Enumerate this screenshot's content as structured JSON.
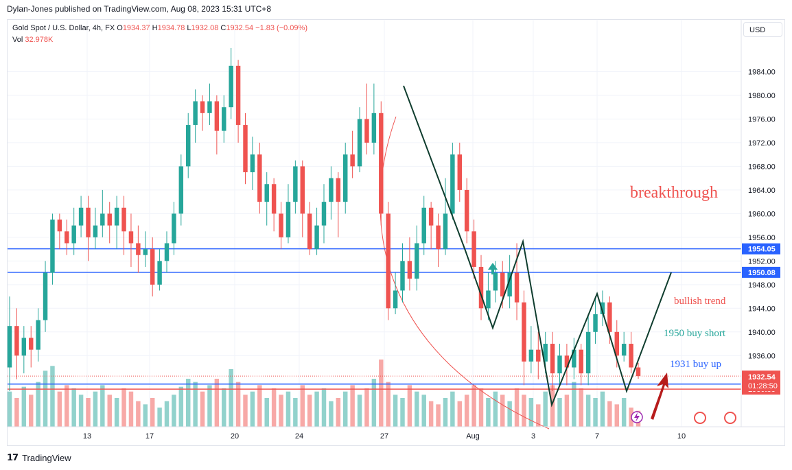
{
  "header": {
    "publisher": "Dylan-Jones published on TradingView.com, Aug 08, 2023 15:31 UTC+8"
  },
  "legend": {
    "symbol": "Gold Spot / U.S. Dollar, 4h, FX",
    "open_label": "O",
    "open": "1934.37",
    "high_label": "H",
    "high": "1934.78",
    "low_label": "L",
    "low": "1932.08",
    "close_label": "C",
    "close": "1932.54",
    "change": "−1.83 (−0.09%)",
    "vol_label": "Vol",
    "vol": "32.978K"
  },
  "currency_button": "USD",
  "footer": {
    "brand": "TradingView"
  },
  "colors": {
    "up": "#26a69a",
    "down": "#ef5350",
    "level": "#2962ff",
    "pattern": "#0f3d2e"
  },
  "chart_data": {
    "type": "candlestick",
    "symbol": "XAUUSD",
    "timeframe": "4h",
    "y_range": [
      1930,
      1988
    ],
    "y_ticks": [
      "1984.00",
      "1980.00",
      "1976.00",
      "1972.00",
      "1968.00",
      "1964.00",
      "1960.00",
      "1956.00",
      "1952.00",
      "1948.00",
      "1944.00",
      "1940.00",
      "1936.00"
    ],
    "x_ticks": [
      "13",
      "17",
      "20",
      "24",
      "27",
      "Aug",
      "3",
      "7",
      "10"
    ],
    "candles": [
      {
        "o": 1934,
        "c": 1941,
        "h": 1946,
        "l": 1930
      },
      {
        "o": 1941,
        "c": 1936,
        "h": 1944,
        "l": 1932
      },
      {
        "o": 1936,
        "c": 1939,
        "h": 1941,
        "l": 1933
      },
      {
        "o": 1939,
        "c": 1937,
        "h": 1941,
        "l": 1934
      },
      {
        "o": 1937,
        "c": 1942,
        "h": 1944,
        "l": 1935
      },
      {
        "o": 1942,
        "c": 1950,
        "h": 1952,
        "l": 1940
      },
      {
        "o": 1950,
        "c": 1959,
        "h": 1960,
        "l": 1948
      },
      {
        "o": 1959,
        "c": 1957,
        "h": 1960,
        "l": 1954
      },
      {
        "o": 1957,
        "c": 1955,
        "h": 1959,
        "l": 1953
      },
      {
        "o": 1955,
        "c": 1958,
        "h": 1961,
        "l": 1953
      },
      {
        "o": 1958,
        "c": 1961,
        "h": 1963,
        "l": 1956
      },
      {
        "o": 1961,
        "c": 1956,
        "h": 1963,
        "l": 1952
      },
      {
        "o": 1956,
        "c": 1958,
        "h": 1961,
        "l": 1954
      },
      {
        "o": 1958,
        "c": 1960,
        "h": 1964,
        "l": 1956
      },
      {
        "o": 1960,
        "c": 1958,
        "h": 1962,
        "l": 1955
      },
      {
        "o": 1958,
        "c": 1961,
        "h": 1963,
        "l": 1954
      },
      {
        "o": 1961,
        "c": 1957,
        "h": 1963,
        "l": 1953
      },
      {
        "o": 1957,
        "c": 1955,
        "h": 1960,
        "l": 1951
      },
      {
        "o": 1955,
        "c": 1953,
        "h": 1958,
        "l": 1950
      },
      {
        "o": 1953,
        "c": 1954,
        "h": 1957,
        "l": 1951
      },
      {
        "o": 1954,
        "c": 1948,
        "h": 1956,
        "l": 1946
      },
      {
        "o": 1948,
        "c": 1952,
        "h": 1954,
        "l": 1947
      },
      {
        "o": 1952,
        "c": 1955,
        "h": 1957,
        "l": 1950
      },
      {
        "o": 1955,
        "c": 1960,
        "h": 1962,
        "l": 1953
      },
      {
        "o": 1960,
        "c": 1968,
        "h": 1970,
        "l": 1958
      },
      {
        "o": 1968,
        "c": 1975,
        "h": 1977,
        "l": 1966
      },
      {
        "o": 1975,
        "c": 1979,
        "h": 1981,
        "l": 1972
      },
      {
        "o": 1979,
        "c": 1977,
        "h": 1980,
        "l": 1974
      },
      {
        "o": 1977,
        "c": 1979,
        "h": 1982,
        "l": 1975
      },
      {
        "o": 1979,
        "c": 1974,
        "h": 1980,
        "l": 1970
      },
      {
        "o": 1974,
        "c": 1978,
        "h": 1980,
        "l": 1972
      },
      {
        "o": 1978,
        "c": 1985,
        "h": 1988,
        "l": 1976
      },
      {
        "o": 1985,
        "c": 1975,
        "h": 1986,
        "l": 1972
      },
      {
        "o": 1975,
        "c": 1967,
        "h": 1977,
        "l": 1965
      },
      {
        "o": 1967,
        "c": 1970,
        "h": 1973,
        "l": 1964
      },
      {
        "o": 1970,
        "c": 1962,
        "h": 1972,
        "l": 1960
      },
      {
        "o": 1962,
        "c": 1965,
        "h": 1967,
        "l": 1958
      },
      {
        "o": 1965,
        "c": 1960,
        "h": 1966,
        "l": 1957
      },
      {
        "o": 1960,
        "c": 1956,
        "h": 1962,
        "l": 1954
      },
      {
        "o": 1956,
        "c": 1962,
        "h": 1965,
        "l": 1955
      },
      {
        "o": 1962,
        "c": 1968,
        "h": 1969,
        "l": 1960
      },
      {
        "o": 1968,
        "c": 1960,
        "h": 1969,
        "l": 1956
      },
      {
        "o": 1960,
        "c": 1954,
        "h": 1962,
        "l": 1953
      },
      {
        "o": 1954,
        "c": 1958,
        "h": 1961,
        "l": 1953
      },
      {
        "o": 1958,
        "c": 1962,
        "h": 1965,
        "l": 1955
      },
      {
        "o": 1962,
        "c": 1966,
        "h": 1968,
        "l": 1959
      },
      {
        "o": 1966,
        "c": 1962,
        "h": 1967,
        "l": 1956
      },
      {
        "o": 1962,
        "c": 1970,
        "h": 1972,
        "l": 1960
      },
      {
        "o": 1970,
        "c": 1968,
        "h": 1974,
        "l": 1966
      },
      {
        "o": 1968,
        "c": 1976,
        "h": 1978,
        "l": 1967
      },
      {
        "o": 1976,
        "c": 1972,
        "h": 1982,
        "l": 1970
      },
      {
        "o": 1972,
        "c": 1977,
        "h": 1982,
        "l": 1970
      },
      {
        "o": 1977,
        "c": 1960,
        "h": 1979,
        "l": 1958
      },
      {
        "o": 1960,
        "c": 1944,
        "h": 1962,
        "l": 1942
      },
      {
        "o": 1944,
        "c": 1947,
        "h": 1950,
        "l": 1943
      },
      {
        "o": 1947,
        "c": 1952,
        "h": 1955,
        "l": 1945
      },
      {
        "o": 1952,
        "c": 1949,
        "h": 1956,
        "l": 1947
      },
      {
        "o": 1949,
        "c": 1955,
        "h": 1958,
        "l": 1947
      },
      {
        "o": 1955,
        "c": 1961,
        "h": 1963,
        "l": 1953
      },
      {
        "o": 1961,
        "c": 1958,
        "h": 1962,
        "l": 1954
      },
      {
        "o": 1958,
        "c": 1954,
        "h": 1960,
        "l": 1951
      },
      {
        "o": 1954,
        "c": 1960,
        "h": 1966,
        "l": 1953
      },
      {
        "o": 1960,
        "c": 1970,
        "h": 1972,
        "l": 1959
      },
      {
        "o": 1970,
        "c": 1964,
        "h": 1972,
        "l": 1962
      },
      {
        "o": 1964,
        "c": 1957,
        "h": 1966,
        "l": 1955
      },
      {
        "o": 1957,
        "c": 1951,
        "h": 1959,
        "l": 1949
      },
      {
        "o": 1951,
        "c": 1944,
        "h": 1953,
        "l": 1942
      },
      {
        "o": 1944,
        "c": 1947,
        "h": 1950,
        "l": 1942
      },
      {
        "o": 1947,
        "c": 1950,
        "h": 1952,
        "l": 1945
      },
      {
        "o": 1950,
        "c": 1946,
        "h": 1952,
        "l": 1944
      },
      {
        "o": 1946,
        "c": 1950,
        "h": 1953,
        "l": 1944
      },
      {
        "o": 1950,
        "c": 1945,
        "h": 1955,
        "l": 1942
      },
      {
        "o": 1945,
        "c": 1935,
        "h": 1947,
        "l": 1931
      },
      {
        "o": 1935,
        "c": 1937,
        "h": 1941,
        "l": 1933
      },
      {
        "o": 1937,
        "c": 1935,
        "h": 1940,
        "l": 1932
      },
      {
        "o": 1935,
        "c": 1938,
        "h": 1940,
        "l": 1933
      },
      {
        "o": 1938,
        "c": 1933,
        "h": 1940,
        "l": 1930
      },
      {
        "o": 1933,
        "c": 1936,
        "h": 1938,
        "l": 1931
      },
      {
        "o": 1936,
        "c": 1934,
        "h": 1938,
        "l": 1931
      },
      {
        "o": 1934,
        "c": 1937,
        "h": 1939,
        "l": 1932
      },
      {
        "o": 1937,
        "c": 1933,
        "h": 1938,
        "l": 1931
      },
      {
        "o": 1933,
        "c": 1940,
        "h": 1943,
        "l": 1931
      },
      {
        "o": 1940,
        "c": 1943,
        "h": 1946,
        "l": 1938
      },
      {
        "o": 1943,
        "c": 1945,
        "h": 1947,
        "l": 1941
      },
      {
        "o": 1945,
        "c": 1940,
        "h": 1946,
        "l": 1938
      },
      {
        "o": 1940,
        "c": 1936,
        "h": 1942,
        "l": 1934
      },
      {
        "o": 1936,
        "c": 1938,
        "h": 1940,
        "l": 1935
      },
      {
        "o": 1938,
        "c": 1934,
        "h": 1940,
        "l": 1933
      },
      {
        "o": 1934,
        "c": 1932.54,
        "h": 1934.78,
        "l": 1932.08
      }
    ],
    "volume_range": [
      0,
      60
    ],
    "volumes": [
      22,
      18,
      25,
      20,
      28,
      35,
      38,
      22,
      26,
      24,
      20,
      18,
      22,
      26,
      20,
      18,
      24,
      22,
      16,
      14,
      18,
      12,
      16,
      20,
      25,
      30,
      28,
      22,
      26,
      30,
      24,
      36,
      28,
      20,
      22,
      26,
      18,
      24,
      20,
      22,
      18,
      26,
      20,
      22,
      24,
      16,
      18,
      22,
      26,
      20,
      24,
      30,
      42,
      28,
      20,
      18,
      26,
      22,
      20,
      16,
      14,
      18,
      22,
      16,
      20,
      26,
      24,
      18,
      22,
      20,
      16,
      24,
      20,
      18,
      14,
      22,
      26,
      18,
      20,
      28,
      24,
      20,
      18,
      22,
      16,
      14,
      18,
      12,
      10
    ],
    "levels": [
      {
        "label": "1954.05",
        "value": 1954.05,
        "color": "#2962ff"
      },
      {
        "label": "1950.08",
        "value": 1950.08,
        "color": "#2962ff"
      },
      {
        "label": "1931.19",
        "value": 1931.19,
        "color": "#2962ff"
      },
      {
        "label": "1930.33",
        "value": 1930.33,
        "color": "#ef5350"
      }
    ],
    "last_price": {
      "label": "1932.54",
      "countdown": "01:28:50",
      "value": 1932.54
    },
    "annotations": [
      {
        "text": "breakthrough",
        "color": "#ef5350"
      },
      {
        "text": "bullish trend",
        "color": "#ef5350"
      },
      {
        "text": "1950 buy short",
        "color": "#26a69a"
      },
      {
        "text": "1931 buy up",
        "color": "#2962ff"
      }
    ]
  }
}
